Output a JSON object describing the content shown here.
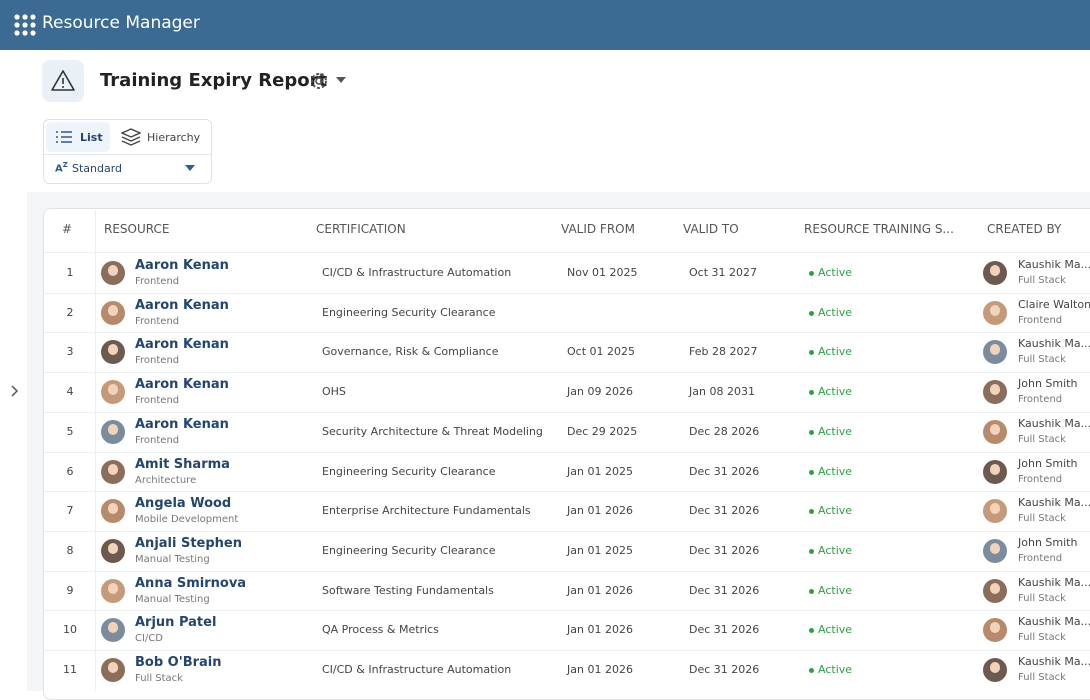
{
  "header": {
    "title": "Resource Manager"
  },
  "report": {
    "title": "Training Expiry Report",
    "views": [
      "List",
      "Hierarchy"
    ],
    "sort": "Standard"
  },
  "table": {
    "columns": [
      "#",
      "RESOURCE",
      "CERTIFICATION",
      "VALID FROM",
      "VALID TO",
      "RESOURCE TRAINING S...",
      "CREATED BY"
    ],
    "rows": [
      {
        "index": 1,
        "resource": "Aaron Kenan",
        "team": "Frontend",
        "certification": "CI/CD & Infrastructure Automation",
        "valid_from": "Nov 01 2025",
        "valid_to": "Oct 31 2027",
        "status": "Active",
        "created_by": "Kaushik Ma...",
        "created_by_team": "Full Stack"
      },
      {
        "index": 2,
        "resource": "Aaron Kenan",
        "team": "Frontend",
        "certification": "Engineering Security Clearance",
        "status": "Active",
        "created_by": "Claire Walton",
        "created_by_team": "Frontend"
      },
      {
        "index": 3,
        "resource": "Aaron Kenan",
        "team": "Frontend",
        "certification": "Governance, Risk & Compliance",
        "valid_from": "Oct 01 2025",
        "valid_to": "Feb 28 2027",
        "status": "Active",
        "created_by": "Kaushik Ma...",
        "created_by_team": "Full Stack"
      },
      {
        "index": 4,
        "resource": "Aaron Kenan",
        "team": "Frontend",
        "certification": "OHS",
        "valid_from": "Jan 09 2026",
        "valid_to": "Jan 08 2031",
        "status": "Active",
        "created_by": "John Smith",
        "created_by_team": "Frontend"
      },
      {
        "index": 5,
        "resource": "Aaron Kenan",
        "team": "Frontend",
        "certification": "Security Architecture & Threat Modeling",
        "valid_from": "Dec 29 2025",
        "valid_to": "Dec 28 2026",
        "status": "Active",
        "created_by": "Kaushik Ma...",
        "created_by_team": "Full Stack"
      },
      {
        "index": 6,
        "resource": "Amit Sharma",
        "team": "Architecture",
        "certification": "Engineering Security Clearance",
        "valid_from": "Jan 01 2025",
        "valid_to": "Dec 31 2026",
        "status": "Active",
        "created_by": "John Smith",
        "created_by_team": "Frontend"
      },
      {
        "index": 7,
        "resource": "Angela Wood",
        "team": "Mobile Development",
        "certification": "Enterprise Architecture Fundamentals",
        "valid_from": "Jan 01 2026",
        "valid_to": "Dec 31 2026",
        "status": "Active",
        "created_by": "Kaushik Ma...",
        "created_by_team": "Full Stack"
      },
      {
        "index": 8,
        "resource": "Anjali Stephen",
        "team": "Manual Testing",
        "certification": "Engineering Security Clearance",
        "valid_from": "Jan 01 2025",
        "valid_to": "Dec 31 2026",
        "status": "Active",
        "created_by": "John Smith",
        "created_by_team": "Frontend"
      },
      {
        "index": 9,
        "resource": "Anna Smirnova",
        "team": "Manual Testing",
        "certification": "Software Testing Fundamentals",
        "valid_from": "Jan 01 2026",
        "valid_to": "Dec 31 2026",
        "status": "Active",
        "created_by": "Kaushik Ma...",
        "created_by_team": "Full Stack"
      },
      {
        "index": 10,
        "resource": "Arjun Patel",
        "team": "CI/CD",
        "certification": "QA Process & Metrics",
        "valid_from": "Jan 01 2026",
        "valid_to": "Dec 31 2026",
        "status": "Active",
        "created_by": "Kaushik Ma...",
        "created_by_team": "Full Stack"
      },
      {
        "index": 11,
        "resource": "Bob O'Brain",
        "team": "Full Stack",
        "certification": "CI/CD & Infrastructure Automation",
        "valid_from": "Jan 01 2026",
        "valid_to": "Dec 31 2026",
        "status": "Active",
        "created_by": "Kaushik Ma...",
        "created_by_team": "Full Stack"
      }
    ]
  }
}
